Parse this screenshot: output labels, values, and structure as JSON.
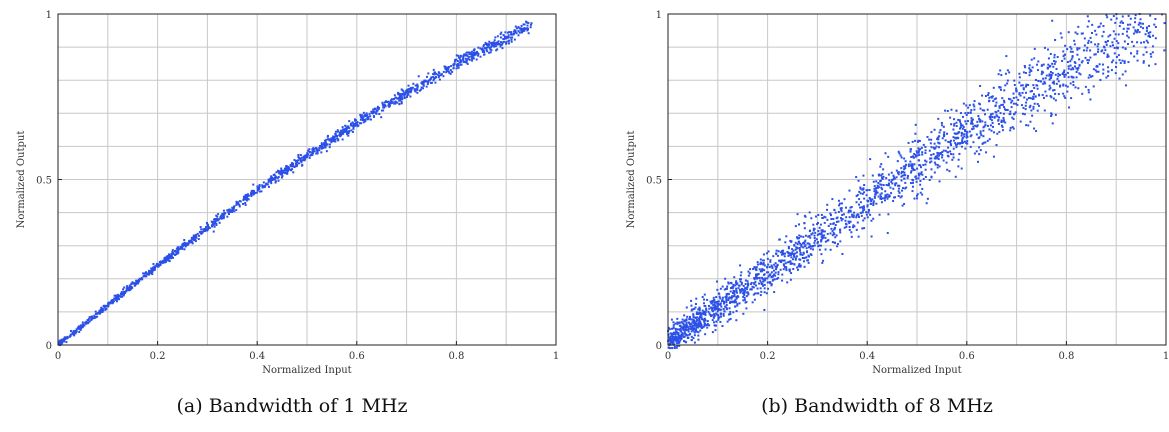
{
  "figure": {
    "captions": [
      "(a) Bandwidth of 1 MHz",
      "(b) Bandwidth of 8 MHz"
    ]
  },
  "chart_data": [
    {
      "type": "scatter",
      "xlabel": "Normalized Input",
      "ylabel": "Normalized Output",
      "xlim": [
        0,
        1
      ],
      "ylim": [
        0,
        1
      ],
      "xticks": [
        0,
        0.2,
        0.4,
        0.6,
        0.8,
        1
      ],
      "xtick_labels": [
        "0",
        "0.2",
        "0.4",
        "0.6",
        "0.8",
        "1"
      ],
      "yticks": [
        0,
        0.5,
        1
      ],
      "ytick_labels": [
        "0",
        "0.5",
        "1"
      ],
      "grid": true,
      "marker_color": "#2b50e8",
      "trend": {
        "description_free": true,
        "x": [
          0,
          0.2,
          0.4,
          0.6,
          0.8,
          0.9,
          1.0
        ],
        "y": [
          0,
          0.24,
          0.47,
          0.67,
          0.85,
          0.93,
          1.0
        ]
      },
      "spread": 0.006
    },
    {
      "type": "scatter",
      "xlabel": "Normalized Input",
      "ylabel": "Normalized Output",
      "xlim": [
        0,
        1
      ],
      "ylim": [
        0,
        1
      ],
      "xticks": [
        0,
        0.2,
        0.4,
        0.6,
        0.8,
        1
      ],
      "xtick_labels": [
        "0",
        "0.2",
        "0.4",
        "0.6",
        "0.8",
        "1"
      ],
      "yticks": [
        0,
        0.5,
        1
      ],
      "ytick_labels": [
        "0",
        "0.5",
        "1"
      ],
      "grid": true,
      "marker_color": "#2b50e8",
      "trend": {
        "description_free": true,
        "x": [
          0,
          0.2,
          0.4,
          0.6,
          0.8,
          0.9,
          1.0
        ],
        "y": [
          0.01,
          0.22,
          0.44,
          0.65,
          0.84,
          0.92,
          1.0
        ]
      },
      "spread": 0.035
    }
  ]
}
